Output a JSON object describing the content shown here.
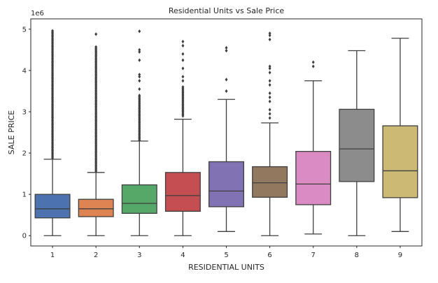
{
  "chart_data": {
    "type": "box",
    "title": "Residential Units vs Sale Price",
    "xlabel": "RESIDENTIAL UNITS",
    "ylabel": "SALE PRICE",
    "y_offset_label": "1e6",
    "categories": [
      "1",
      "2",
      "3",
      "4",
      "5",
      "6",
      "7",
      "8",
      "9"
    ],
    "yticks": [
      0,
      1,
      2,
      3,
      4,
      5
    ],
    "ylim": [
      -0.25,
      5.25
    ],
    "grid": false,
    "boxes": [
      {
        "category": "1",
        "color": "#4c72b0",
        "whisker_low": 0.0,
        "q1": 0.43,
        "median": 0.65,
        "q3": 1.0,
        "whisker_high": 1.85,
        "outliers_range": [
          1.88,
          4.98
        ],
        "outliers": []
      },
      {
        "category": "2",
        "color": "#dd8452",
        "whisker_low": 0.0,
        "q1": 0.46,
        "median": 0.65,
        "q3": 0.88,
        "whisker_high": 1.53,
        "outliers_range": [
          1.56,
          4.6
        ],
        "outliers": [
          4.88
        ]
      },
      {
        "category": "3",
        "color": "#55a868",
        "whisker_low": 0.0,
        "q1": 0.54,
        "median": 0.78,
        "q3": 1.23,
        "whisker_high": 2.29,
        "outliers_range": [
          2.31,
          3.4
        ],
        "outliers": [
          3.55,
          3.75,
          3.85,
          3.9,
          4.25,
          4.45,
          4.5,
          4.95
        ]
      },
      {
        "category": "4",
        "color": "#c44e52",
        "whisker_low": 0.0,
        "q1": 0.59,
        "median": 0.97,
        "q3": 1.53,
        "whisker_high": 2.82,
        "outliers_range": [
          2.9,
          3.6
        ],
        "outliers": [
          3.75,
          3.85,
          4.05,
          4.25,
          4.4,
          4.6,
          4.7
        ]
      },
      {
        "category": "5",
        "color": "#8172b3",
        "whisker_low": 0.1,
        "q1": 0.7,
        "median": 1.08,
        "q3": 1.79,
        "whisker_high": 3.3,
        "outliers": [
          3.5,
          3.78,
          4.48,
          4.55
        ]
      },
      {
        "category": "6",
        "color": "#937860",
        "whisker_low": 0.0,
        "q1": 0.93,
        "median": 1.28,
        "q3": 1.67,
        "whisker_high": 2.73,
        "outliers": [
          2.85,
          2.95,
          3.05,
          3.25,
          3.35,
          3.45,
          3.65,
          3.75,
          3.95,
          4.05,
          4.1,
          4.75,
          4.85,
          4.9
        ]
      },
      {
        "category": "7",
        "color": "#da8bc3",
        "whisker_low": 0.04,
        "q1": 0.75,
        "median": 1.25,
        "q3": 2.04,
        "whisker_high": 3.75,
        "outliers": [
          4.1,
          4.2
        ]
      },
      {
        "category": "8",
        "color": "#8c8c8c",
        "whisker_low": 0.0,
        "q1": 1.31,
        "median": 2.1,
        "q3": 3.06,
        "whisker_high": 4.48,
        "outliers": []
      },
      {
        "category": "9",
        "color": "#ccb974",
        "whisker_low": 0.1,
        "q1": 0.92,
        "median": 1.57,
        "q3": 2.66,
        "whisker_high": 4.78,
        "outliers": []
      }
    ]
  }
}
